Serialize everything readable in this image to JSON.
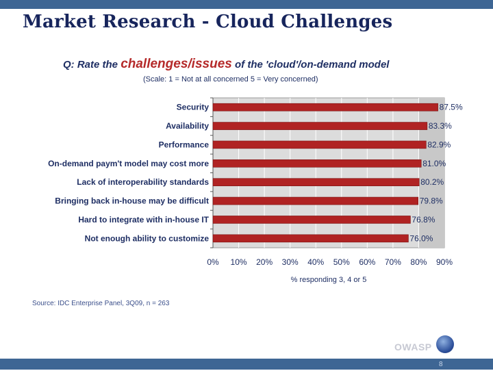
{
  "slide": {
    "title": "Market Research - Cloud Challenges",
    "question_prefix": "Q: Rate the ",
    "question_highlight": "challenges/issues",
    "question_suffix": " of the 'cloud'/on-demand model",
    "scale_note": "(Scale: 1 = Not at all concerned  5 = Very concerned)",
    "source": "Source: IDC Enterprise Panel, 3Q09, n = 263",
    "logo_text": "OWASP",
    "page_number": "8"
  },
  "colors": {
    "bar": "#b02323",
    "plot_bg": "#dcdcdc",
    "grid": "#ffffff",
    "title": "#17255c",
    "band": "#3e6694"
  },
  "chart_data": {
    "type": "bar",
    "orientation": "horizontal",
    "categories": [
      "Security",
      "Availability",
      "Performance",
      "On-demand paym't model may cost more",
      "Lack of interoperability standards",
      "Bringing back in-house may be difficult",
      "Hard to integrate with in-house IT",
      "Not enough ability to customize"
    ],
    "values": [
      87.5,
      83.3,
      82.9,
      81.0,
      80.2,
      79.8,
      76.8,
      76.0
    ],
    "data_labels": [
      "87.5%",
      "83.3%",
      "82.9%",
      "81.0%",
      "80.2%",
      "79.8%",
      "76.8%",
      "76.0%"
    ],
    "xlabel": "% responding 3, 4 or 5",
    "xlim": [
      0,
      90
    ],
    "x_ticks": [
      0,
      10,
      20,
      30,
      40,
      50,
      60,
      70,
      80,
      90
    ],
    "x_tick_labels": [
      "0%",
      "10%",
      "20%",
      "30%",
      "40%",
      "50%",
      "60%",
      "70%",
      "80%",
      "90%"
    ],
    "grid": true
  }
}
